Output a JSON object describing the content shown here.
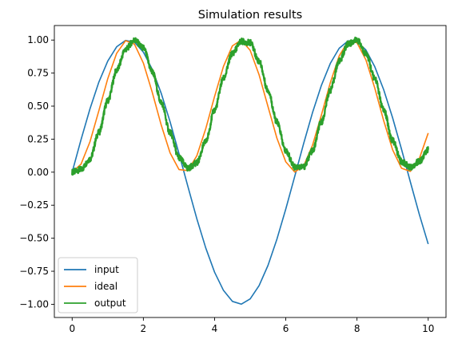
{
  "chart_data": {
    "type": "line",
    "title": "Simulation results",
    "xlabel": "",
    "ylabel": "",
    "xlim": [
      -0.5,
      10.5
    ],
    "ylim": [
      -1.1,
      1.11
    ],
    "grid": false,
    "legend_position": "lower-left",
    "x_ticks": [
      0,
      2,
      4,
      6,
      8,
      10
    ],
    "x_tick_labels": [
      "0",
      "2",
      "4",
      "6",
      "8",
      "10"
    ],
    "y_ticks": [
      1.0,
      0.75,
      0.5,
      0.25,
      0.0,
      -0.25,
      -0.5,
      -0.75,
      -1.0
    ],
    "y_tick_labels": [
      "1.00",
      "0.75",
      "0.50",
      "0.25",
      "0.00",
      "−0.25",
      "−0.50",
      "−0.75",
      "−1.00"
    ],
    "x": [
      0,
      0.25,
      0.5,
      0.75,
      1.0,
      1.25,
      1.5,
      1.75,
      2.0,
      2.25,
      2.5,
      2.75,
      3.0,
      3.25,
      3.5,
      3.75,
      4.0,
      4.25,
      4.5,
      4.75,
      5.0,
      5.25,
      5.5,
      5.75,
      6.0,
      6.25,
      6.5,
      6.75,
      7.0,
      7.25,
      7.5,
      7.75,
      8.0,
      8.25,
      8.5,
      8.75,
      9.0,
      9.25,
      9.5,
      9.75,
      10.0
    ],
    "series": [
      {
        "name": "input",
        "color": "#1f77b4",
        "values": [
          0.0,
          0.247,
          0.479,
          0.682,
          0.841,
          0.949,
          0.997,
          0.984,
          0.909,
          0.778,
          0.598,
          0.382,
          0.141,
          -0.108,
          -0.351,
          -0.572,
          -0.757,
          -0.895,
          -0.978,
          -0.999,
          -0.959,
          -0.859,
          -0.706,
          -0.508,
          -0.279,
          -0.033,
          0.215,
          0.45,
          0.657,
          0.823,
          0.938,
          0.994,
          0.989,
          0.925,
          0.798,
          0.624,
          0.412,
          0.174,
          -0.075,
          -0.319,
          -0.544
        ]
      },
      {
        "name": "ideal",
        "color": "#ff7f0e",
        "values": [
          0.0,
          0.061,
          0.23,
          0.465,
          0.708,
          0.9,
          0.995,
          0.969,
          0.826,
          0.604,
          0.358,
          0.146,
          0.02,
          0.012,
          0.123,
          0.327,
          0.573,
          0.801,
          0.956,
          1.0,
          0.922,
          0.737,
          0.497,
          0.258,
          0.078,
          0.001,
          0.046,
          0.203,
          0.432,
          0.677,
          0.88,
          0.991,
          0.98,
          0.85,
          0.636,
          0.389,
          0.17,
          0.03,
          0.006,
          0.102,
          0.296
        ]
      },
      {
        "name": "output",
        "color": "#2ca02c",
        "values": [
          0.0,
          0.02,
          0.1,
          0.3,
          0.54,
          0.77,
          0.93,
          1.0,
          0.94,
          0.76,
          0.53,
          0.3,
          0.11,
          0.03,
          0.07,
          0.23,
          0.47,
          0.71,
          0.9,
          0.99,
          0.98,
          0.84,
          0.62,
          0.38,
          0.16,
          0.04,
          0.04,
          0.16,
          0.38,
          0.62,
          0.84,
          0.97,
          1.0,
          0.9,
          0.71,
          0.47,
          0.24,
          0.08,
          0.04,
          0.08,
          0.17
        ]
      }
    ]
  }
}
